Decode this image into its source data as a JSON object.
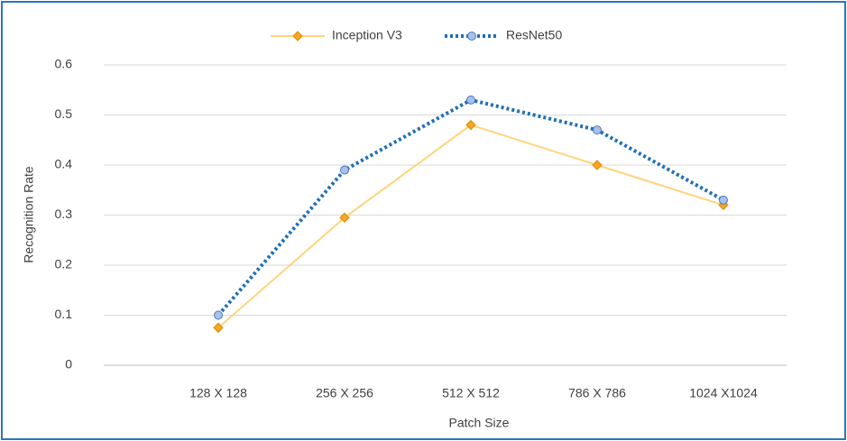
{
  "chart_data": {
    "type": "line",
    "x_label": "Patch Size",
    "y_label": "Recognition Rate",
    "categories": [
      "128 X 128",
      "256 X 256",
      "512 X 512",
      "786 X 786",
      "1024 X1024"
    ],
    "series": [
      {
        "name": "Inception V3",
        "color": "#ffd47a",
        "marker_color": "#f5a623",
        "marker": "diamond",
        "dash": "solid",
        "values": [
          0.075,
          0.295,
          0.48,
          0.4,
          0.32
        ]
      },
      {
        "name": "ResNet50",
        "color": "#1f6fb8",
        "marker_color": "#a9c1ea",
        "marker": "circle",
        "dash": "dotted",
        "values": [
          0.1,
          0.39,
          0.53,
          0.47,
          0.33
        ]
      }
    ],
    "ylim": [
      0,
      0.6
    ],
    "yticks": [
      0,
      0.1,
      0.2,
      0.3,
      0.4,
      0.5,
      0.6
    ],
    "grid": true,
    "legend": "top"
  }
}
